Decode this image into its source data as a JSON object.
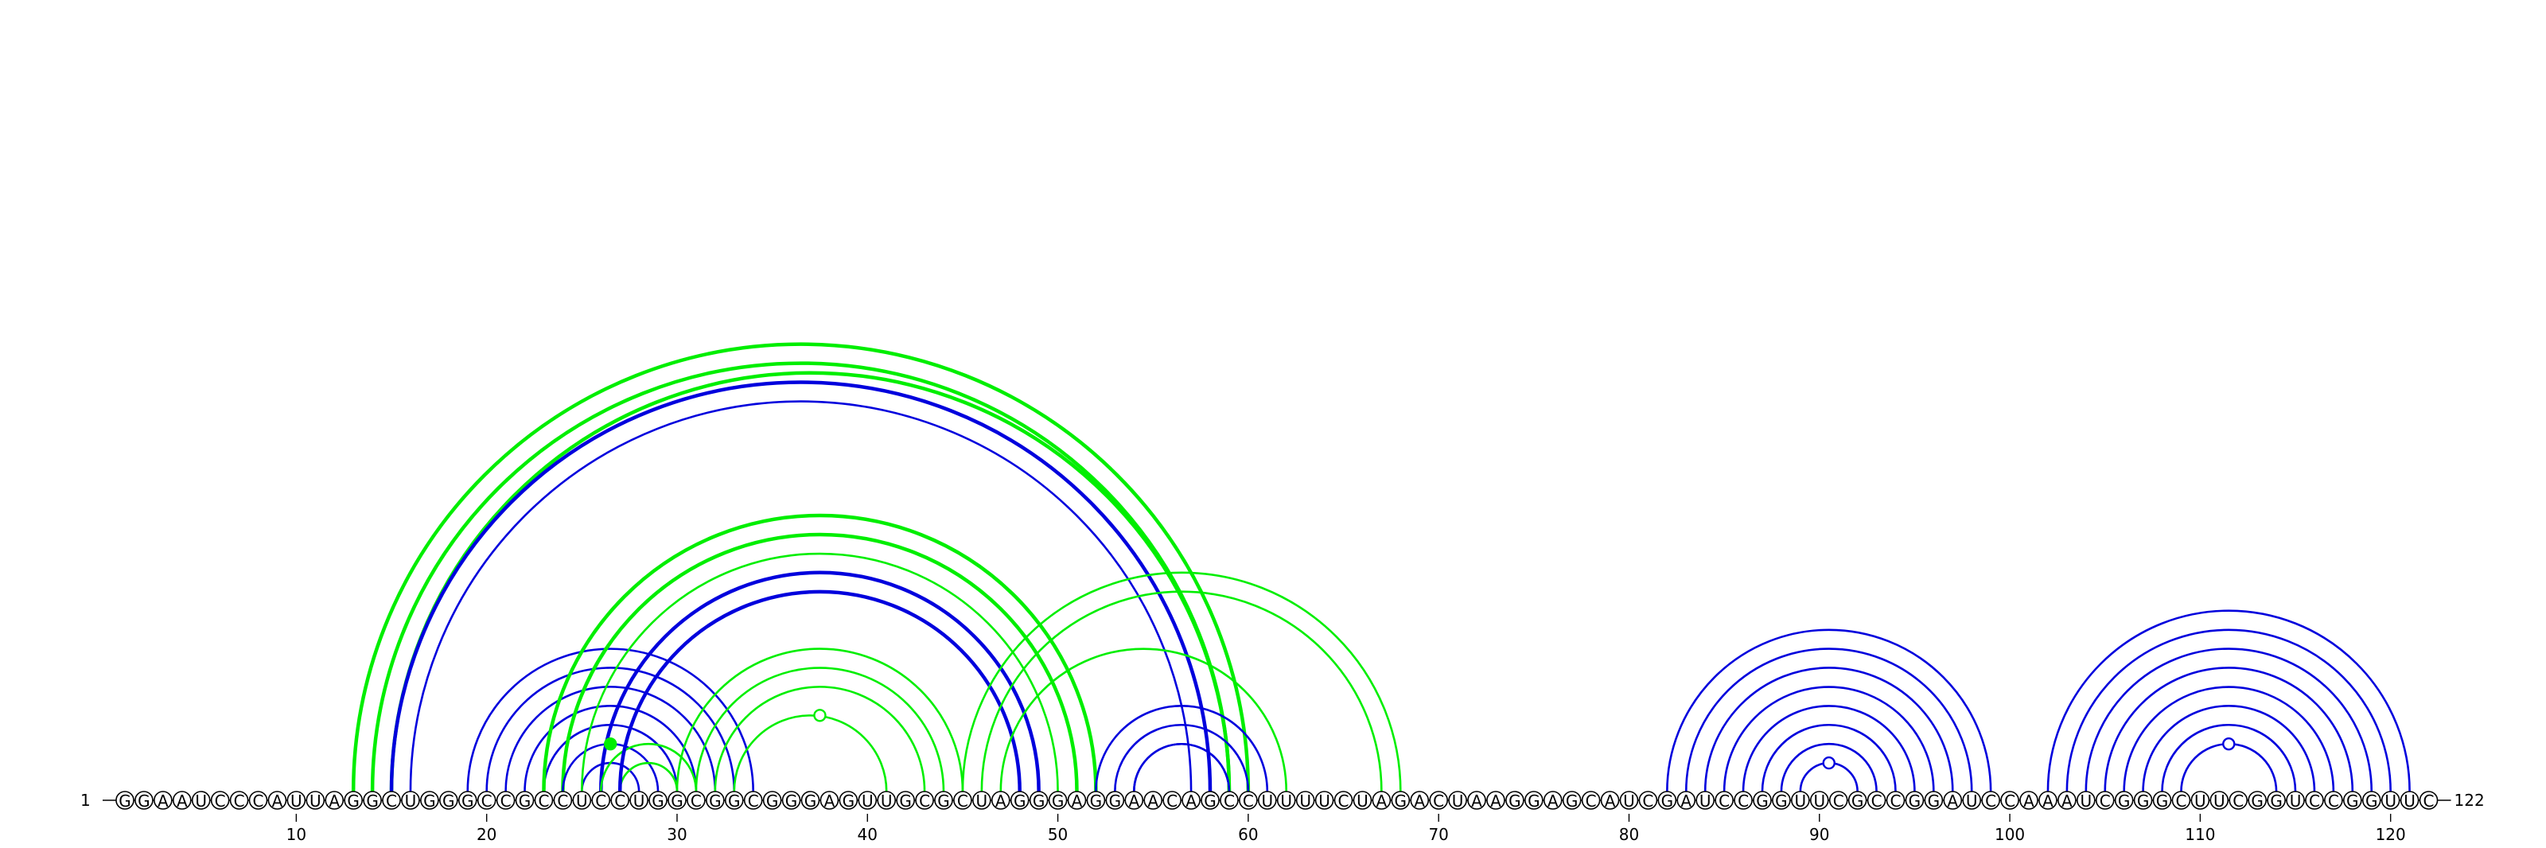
{
  "chart_data": {
    "type": "arc-diagram",
    "sequence": "GGAAUCCCAUUAGGCUGGGCCGCCUCCUGGCGGCGGGAGUUGCGCUAGGGAGGAACAGCCUUUUCUAGACUAAGGAGCAUCGAUCCGGUUCGCCGGAUCCAAAUCGGGCUUCGGUCCGGUUC",
    "start_label": "1",
    "end_label": "122",
    "ticks": [
      10,
      20,
      30,
      40,
      50,
      60,
      70,
      80,
      90,
      100,
      110,
      120
    ],
    "colors": {
      "blue": "#0000dd",
      "green": "#00ee00"
    },
    "helices": [
      {
        "color": "green",
        "i": 13,
        "j": 60,
        "count": 2,
        "weight": "bold"
      },
      {
        "color": "green",
        "i": 15,
        "j": 59,
        "count": 1,
        "weight": "bold"
      },
      {
        "color": "blue",
        "i": 15,
        "j": 58,
        "count": 1,
        "weight": "bold"
      },
      {
        "color": "blue",
        "i": 16,
        "j": 57,
        "count": 1,
        "weight": "normal"
      },
      {
        "color": "blue",
        "i": 19,
        "j": 34,
        "count": 4,
        "weight": "normal"
      },
      {
        "color": "blue",
        "i": 23,
        "j": 30,
        "count": 1,
        "weight": "normal"
      },
      {
        "color": "green",
        "i": 23,
        "j": 52,
        "count": 1,
        "weight": "bold"
      },
      {
        "color": "green",
        "i": 24,
        "j": 51,
        "count": 1,
        "weight": "bold"
      },
      {
        "color": "blue",
        "i": 24,
        "j": 29,
        "count": 2,
        "weight": "normal"
      },
      {
        "color": "green",
        "i": 25,
        "j": 50,
        "count": 1,
        "weight": "normal"
      },
      {
        "color": "blue",
        "i": 26,
        "j": 49,
        "count": 1,
        "weight": "bold"
      },
      {
        "color": "green",
        "i": 26,
        "j": 31,
        "count": 2,
        "weight": "normal"
      },
      {
        "color": "blue",
        "i": 27,
        "j": 48,
        "count": 1,
        "weight": "bold"
      },
      {
        "color": "green",
        "i": 30,
        "j": 45,
        "count": 3,
        "weight": "normal"
      },
      {
        "color": "green",
        "i": 33,
        "j": 41,
        "count": 1,
        "weight": "normal"
      },
      {
        "color": "green",
        "i": 45,
        "j": 68,
        "count": 2,
        "weight": "normal"
      },
      {
        "color": "green",
        "i": 47,
        "j": 62,
        "count": 1,
        "weight": "normal"
      },
      {
        "color": "blue",
        "i": 52,
        "j": 61,
        "count": 3,
        "weight": "normal"
      },
      {
        "color": "blue",
        "i": 54,
        "j": 59,
        "count": 1,
        "weight": "normal"
      },
      {
        "color": "blue",
        "i": 82,
        "j": 99,
        "count": 8,
        "weight": "normal"
      },
      {
        "color": "blue",
        "i": 102,
        "j": 121,
        "count": 8,
        "weight": "normal"
      }
    ],
    "markers": [
      {
        "color": "green",
        "pos": 37.5,
        "filled": false
      },
      {
        "color": "green",
        "pos": 26.5,
        "filled": true
      },
      {
        "color": "blue",
        "pos": 90.5,
        "filled": false
      },
      {
        "color": "blue",
        "pos": 111.5,
        "filled": false
      }
    ]
  }
}
